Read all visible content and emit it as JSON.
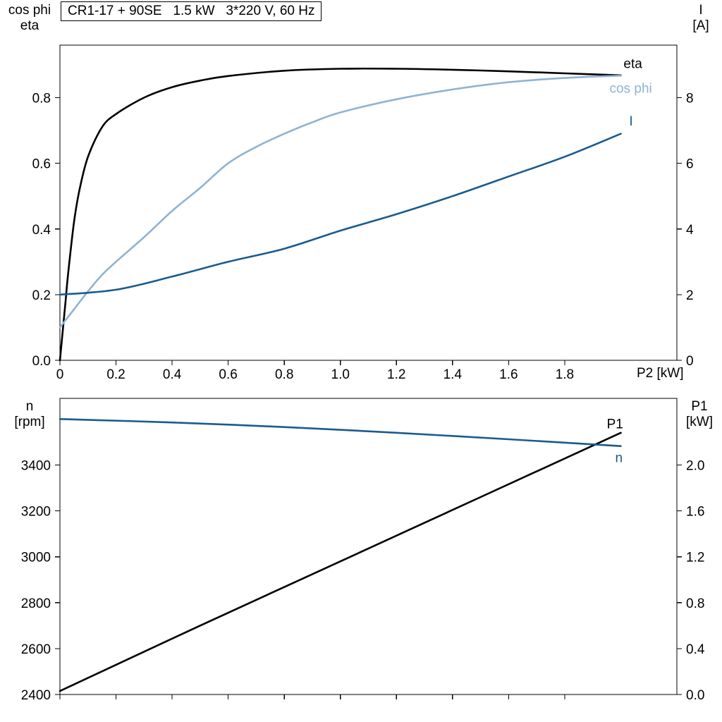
{
  "chart_data": [
    {
      "type": "line",
      "title": "CR1-17 + 90SE   1.5 kW   3*220 V, 60 Hz",
      "x_title": "P2 [kW]",
      "y_left_title_line1": "cos phi",
      "y_left_title_line2": "eta",
      "y_right_title_line1": "I",
      "y_right_title_line2": "[A]",
      "x_range": [
        0,
        2.2
      ],
      "y_left_range": [
        0,
        0.96
      ],
      "y_right_range": [
        0,
        9.6
      ],
      "grid": false,
      "x_ticks": [
        {
          "v": 0,
          "label": "0"
        },
        {
          "v": 0.2,
          "label": "0.2"
        },
        {
          "v": 0.4,
          "label": "0.4"
        },
        {
          "v": 0.6,
          "label": "0.6"
        },
        {
          "v": 0.8,
          "label": "0.8"
        },
        {
          "v": 1.0,
          "label": "1.0"
        },
        {
          "v": 1.2,
          "label": "1.2"
        },
        {
          "v": 1.4,
          "label": "1.4"
        },
        {
          "v": 1.6,
          "label": "1.6"
        },
        {
          "v": 1.8,
          "label": "1.8"
        }
      ],
      "y_left_ticks": [
        {
          "v": 0,
          "label": "0.0"
        },
        {
          "v": 0.2,
          "label": "0.2"
        },
        {
          "v": 0.4,
          "label": "0.4"
        },
        {
          "v": 0.6,
          "label": "0.6"
        },
        {
          "v": 0.8,
          "label": "0.8"
        }
      ],
      "y_right_ticks": [
        {
          "v": 0,
          "label": "0"
        },
        {
          "v": 2,
          "label": "2"
        },
        {
          "v": 4,
          "label": "4"
        },
        {
          "v": 6,
          "label": "6"
        },
        {
          "v": 8,
          "label": "8"
        }
      ],
      "series": [
        {
          "name": "eta",
          "label": "eta",
          "axis": "left",
          "color": "#000000",
          "label_x": 2.01,
          "label_y": 0.89,
          "x": [
            0,
            0.01,
            0.02,
            0.03,
            0.05,
            0.07,
            0.1,
            0.15,
            0.2,
            0.3,
            0.4,
            0.5,
            0.6,
            0.8,
            1.0,
            1.2,
            1.4,
            1.6,
            1.8,
            2.0
          ],
          "y": [
            0,
            0.09,
            0.18,
            0.27,
            0.42,
            0.52,
            0.62,
            0.71,
            0.75,
            0.8,
            0.832,
            0.852,
            0.866,
            0.882,
            0.888,
            0.888,
            0.885,
            0.88,
            0.874,
            0.868
          ]
        },
        {
          "name": "cos phi",
          "label": "cos phi",
          "axis": "left",
          "color": "#8fb3d3",
          "label_x": 1.96,
          "label_y": 0.815,
          "x": [
            0,
            0.05,
            0.1,
            0.15,
            0.2,
            0.3,
            0.4,
            0.5,
            0.6,
            0.7,
            0.8,
            0.9,
            1.0,
            1.2,
            1.4,
            1.6,
            1.8,
            2.0
          ],
          "y": [
            0.1,
            0.155,
            0.21,
            0.26,
            0.3,
            0.375,
            0.455,
            0.525,
            0.6,
            0.65,
            0.69,
            0.725,
            0.755,
            0.795,
            0.825,
            0.847,
            0.86,
            0.867
          ]
        },
        {
          "name": "I",
          "label": "I",
          "axis": "right",
          "color": "#1a5b8e",
          "label_x": 2.03,
          "label_y": 7.15,
          "x": [
            0,
            0.2,
            0.4,
            0.6,
            0.8,
            1.0,
            1.2,
            1.4,
            1.6,
            1.8,
            2.0
          ],
          "y": [
            2.0,
            2.15,
            2.55,
            3.0,
            3.4,
            3.95,
            4.45,
            5.0,
            5.6,
            6.2,
            6.9
          ]
        }
      ]
    },
    {
      "type": "line",
      "y_left_title_line1": "n",
      "y_left_title_line2": "[rpm]",
      "y_right_title_line1": "P1",
      "y_right_title_line2": "[kW]",
      "x_range": [
        0,
        2.2
      ],
      "y_left_range": [
        2400,
        3690
      ],
      "y_right_range": [
        0,
        2.58
      ],
      "grid": false,
      "x_ticks": [
        {
          "v": 0
        },
        {
          "v": 0.2
        },
        {
          "v": 0.4
        },
        {
          "v": 0.6
        },
        {
          "v": 0.8
        },
        {
          "v": 1.0
        },
        {
          "v": 1.2
        },
        {
          "v": 1.4
        },
        {
          "v": 1.6
        },
        {
          "v": 1.8
        }
      ],
      "y_left_ticks": [
        {
          "v": 2400,
          "label": "2400"
        },
        {
          "v": 2600,
          "label": "2600"
        },
        {
          "v": 2800,
          "label": "2800"
        },
        {
          "v": 3000,
          "label": "3000"
        },
        {
          "v": 3200,
          "label": "3200"
        },
        {
          "v": 3400,
          "label": "3400"
        }
      ],
      "y_right_ticks": [
        {
          "v": 0,
          "label": "0.0"
        },
        {
          "v": 0.4,
          "label": "0.4"
        },
        {
          "v": 0.8,
          "label": "0.8"
        },
        {
          "v": 1.2,
          "label": "1.2"
        },
        {
          "v": 1.6,
          "label": "1.6"
        },
        {
          "v": 2.0,
          "label": "2.0"
        }
      ],
      "series": [
        {
          "name": "P1",
          "label": "P1",
          "axis": "right",
          "color": "#000000",
          "label_x": 1.95,
          "label_y": 2.32,
          "x": [
            0,
            0.5,
            1.0,
            1.5,
            2.0
          ],
          "y": [
            0.03,
            0.6,
            1.16,
            1.72,
            2.28
          ]
        },
        {
          "name": "n",
          "label": "n",
          "axis": "left",
          "color": "#1a5b8e",
          "label_x": 1.98,
          "label_y": 3412,
          "x": [
            0,
            0.4,
            0.8,
            1.2,
            1.6,
            2.0
          ],
          "y": [
            3600,
            3585,
            3565,
            3540,
            3512,
            3482
          ]
        }
      ]
    }
  ]
}
